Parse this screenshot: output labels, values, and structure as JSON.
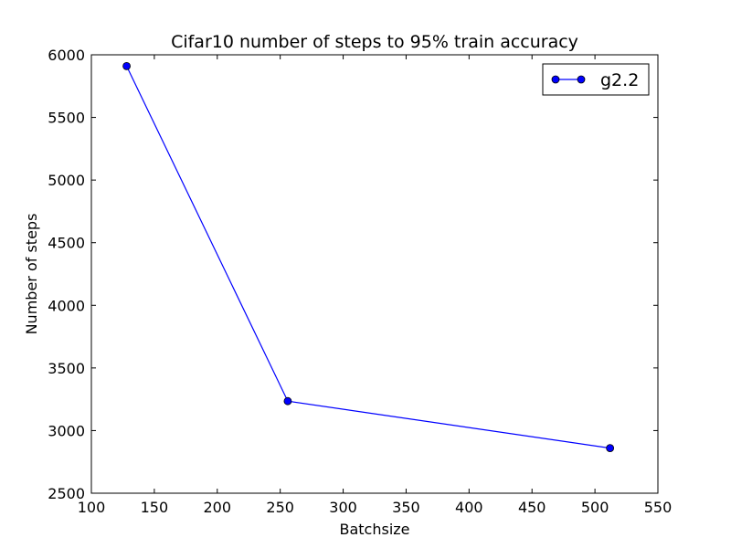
{
  "chart_data": {
    "type": "line",
    "title": "Cifar10 number of steps to 95% train accuracy",
    "xlabel": "Batchsize",
    "ylabel": "Number of steps",
    "xlim": [
      100,
      550
    ],
    "ylim": [
      2500,
      6000
    ],
    "xticks": [
      100,
      150,
      200,
      250,
      300,
      350,
      400,
      450,
      500,
      550
    ],
    "yticks": [
      2500,
      3000,
      3500,
      4000,
      4500,
      5000,
      5500,
      6000
    ],
    "grid": false,
    "legend_position": "top-right",
    "series": [
      {
        "name": "g2.2",
        "color": "#0000ff",
        "marker": "circle",
        "x": [
          128,
          256,
          512
        ],
        "y": [
          5910,
          3235,
          2860
        ]
      }
    ]
  }
}
